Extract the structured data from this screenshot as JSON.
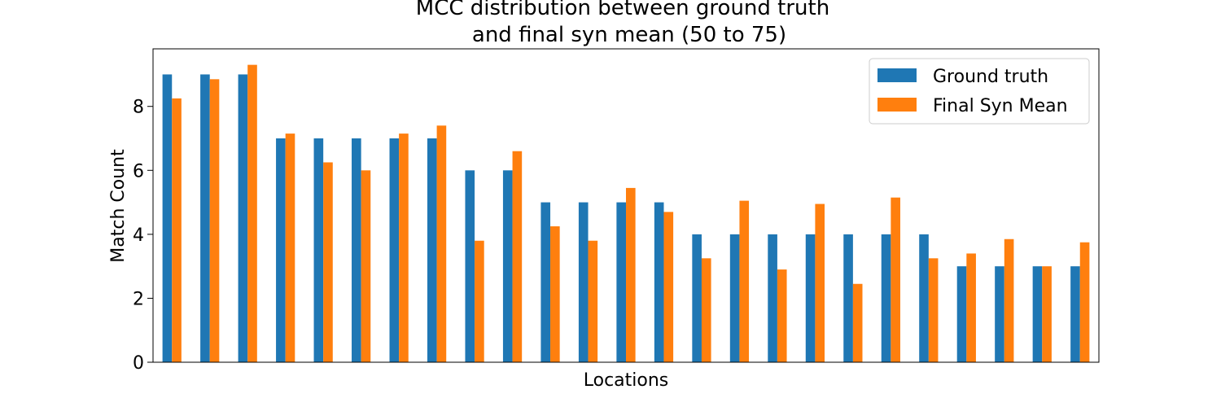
{
  "chart_data": {
    "type": "bar",
    "title_lines": [
      "MCC distribution between ground truth",
      "and final syn mean (50 to 75)"
    ],
    "xlabel": "Locations",
    "ylabel": "Match Count",
    "ylim": [
      0,
      9.8
    ],
    "yticks": [
      0,
      2,
      4,
      6,
      8
    ],
    "x_tick_labels_visible": false,
    "grid": false,
    "legend_position": "top-right",
    "n_categories": 25,
    "series": [
      {
        "name": "Ground truth",
        "color": "#1f77b4",
        "values": [
          9,
          9,
          9,
          7,
          7,
          7,
          7,
          7,
          6,
          6,
          5,
          5,
          5,
          5,
          4,
          4,
          4,
          4,
          4,
          4,
          4,
          3,
          3,
          3,
          3
        ]
      },
      {
        "name": "Final Syn Mean",
        "color": "#ff7f0e",
        "values": [
          8.25,
          8.85,
          9.3,
          7.15,
          6.25,
          6.0,
          7.15,
          7.4,
          3.8,
          6.6,
          4.25,
          3.8,
          5.45,
          4.7,
          3.25,
          5.05,
          2.9,
          4.95,
          2.45,
          5.15,
          3.25,
          3.4,
          3.85,
          3.0,
          3.75
        ]
      }
    ]
  }
}
